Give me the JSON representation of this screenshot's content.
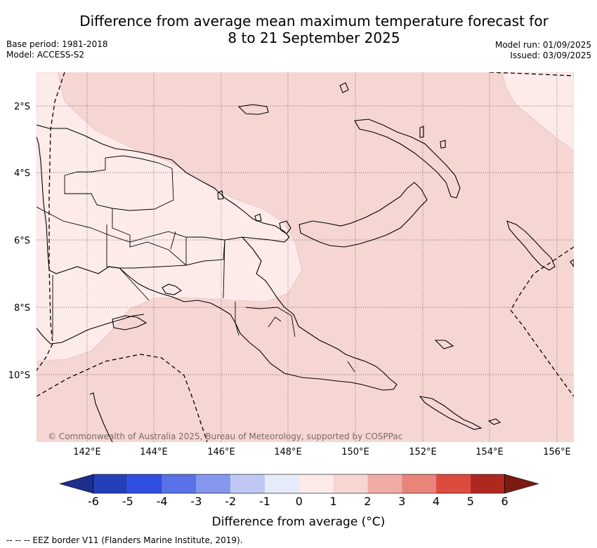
{
  "title": {
    "line1": "Difference from average mean maximum temperature forecast for",
    "line2": "8 to 21 September 2025"
  },
  "meta": {
    "base_period": "Base period: 1981-2018",
    "model": "Model: ACCESS-S2",
    "model_run": "Model run: 01/09/2025",
    "issued": "Issued: 03/09/2025"
  },
  "map": {
    "lon_ticks": [
      "142°E",
      "144°E",
      "146°E",
      "148°E",
      "150°E",
      "152°E",
      "154°E",
      "156°E"
    ],
    "lat_ticks": [
      "2°S",
      "4°S",
      "6°S",
      "8°S",
      "10°S"
    ],
    "copyright": "© Commonwealth of Australia 2025, Bureau of Meteorology, supported by COSPPac",
    "colors": {
      "anomaly_1_to_2": "#f6d6d3",
      "anomaly_0_to_1": "#fcebe9",
      "coast": "#000000",
      "eez": "#000000"
    }
  },
  "colorbar": {
    "ticks": [
      "-6",
      "-5",
      "-4",
      "-3",
      "-2",
      "-1",
      "0",
      "1",
      "2",
      "3",
      "4",
      "5",
      "6"
    ],
    "colors": [
      "#1c2f8c",
      "#2340b8",
      "#2f4fe0",
      "#5a72e8",
      "#8598ee",
      "#bfc8f5",
      "#e6eaf9",
      "#fcebe9",
      "#f6d6d3",
      "#f0aca5",
      "#e8847a",
      "#dd4a3e",
      "#b0271f",
      "#7b1b14"
    ],
    "label": "Difference from average (°C)"
  },
  "footnote": "--  --  -- EEZ border V11 (Flanders Marine Institute, 2019)."
}
